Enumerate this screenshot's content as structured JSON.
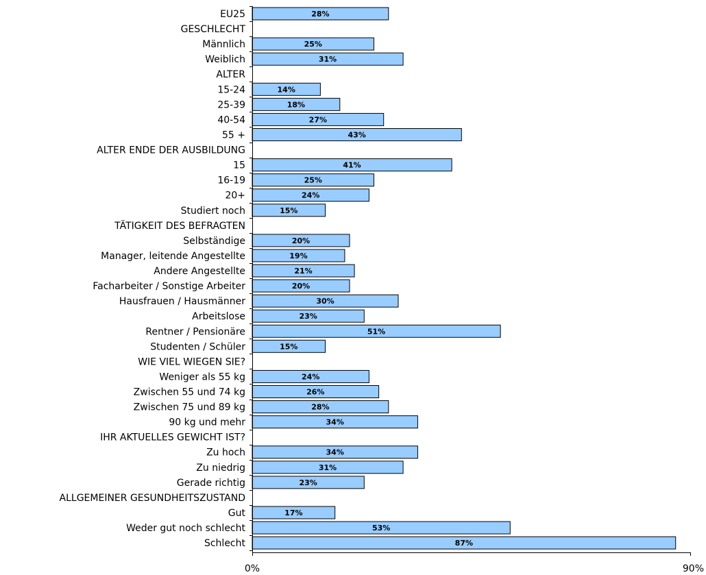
{
  "chart_data": {
    "type": "bar",
    "orientation": "horizontal",
    "categories": [
      "EU25",
      "GESCHLECHT",
      "Männlich",
      "Weiblich",
      "ALTER",
      "15-24",
      "25-39",
      "40-54",
      "55 +",
      "ALTER ENDE DER AUSBILDUNG",
      "15",
      "16-19",
      "20+",
      "Studiert noch",
      "TÄTIGKEIT DES BEFRAGTEN",
      "Selbständige",
      "Manager, leitende Angestellte",
      "Andere Angestellte",
      "Facharbeiter / Sonstige Arbeiter",
      "Hausfrauen / Hausmänner",
      "Arbeitslose",
      "Rentner / Pensionäre",
      "Studenten / Schüler",
      "WIE VIEL WIEGEN SIE?",
      "Weniger als 55 kg",
      "Zwischen 55 und 74 kg",
      "Zwischen 75 und 89 kg",
      "90 kg und mehr",
      "IHR AKTUELLES GEWICHT IST?",
      "Zu hoch",
      "Zu niedrig",
      "Gerade richtig",
      "ALLGEMEINER GESUNDHEITSZUSTAND",
      "Gut",
      "Weder gut noch schlecht",
      "Schlecht"
    ],
    "values": [
      28,
      null,
      25,
      31,
      null,
      14,
      18,
      27,
      43,
      null,
      41,
      25,
      24,
      15,
      null,
      20,
      19,
      21,
      20,
      30,
      23,
      51,
      15,
      null,
      24,
      26,
      28,
      34,
      null,
      34,
      31,
      23,
      null,
      17,
      53,
      87
    ],
    "value_labels": [
      "28%",
      "",
      "25%",
      "31%",
      "",
      "14%",
      "18%",
      "27%",
      "43%",
      "",
      "41%",
      "25%",
      "24%",
      "15%",
      "",
      "20%",
      "19%",
      "21%",
      "20%",
      "30%",
      "23%",
      "51%",
      "15%",
      "",
      "24%",
      "26%",
      "28%",
      "34%",
      "",
      "34%",
      "31%",
      "23%",
      "",
      "17%",
      "53%",
      "87%"
    ],
    "xlim": [
      0,
      90
    ],
    "x_ticks": [
      "0%",
      "90%"
    ],
    "bar_color": "#99ccff",
    "grid": false,
    "title": "",
    "xlabel": "",
    "ylabel": ""
  }
}
